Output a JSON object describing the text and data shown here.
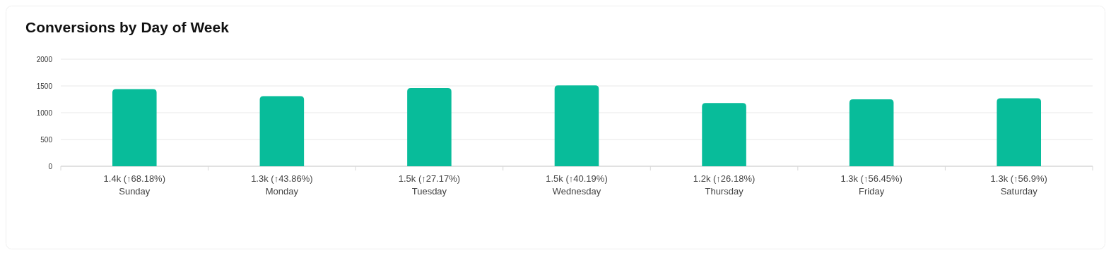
{
  "chart_data": {
    "type": "bar",
    "title": "Conversions by Day of Week",
    "categories": [
      "1.4k (↑68.18%)\nSunday",
      "1.3k (↑43.86%)\nMonday",
      "1.5k (↑27.17%)\nTuesday",
      "1.5k (↑40.19%)\nWednesday",
      "1.2k (↑26.18%)\nThursday",
      "1.3k (↑56.45%)\nFriday",
      "1.3k (↑56.9%)\nSaturday"
    ],
    "values": [
      1440,
      1310,
      1460,
      1510,
      1180,
      1250,
      1270
    ],
    "color": "#08bc9a",
    "ylim": [
      0,
      2000
    ],
    "yticks": [
      0,
      500,
      1000,
      1500,
      2000
    ],
    "grid": "y"
  }
}
